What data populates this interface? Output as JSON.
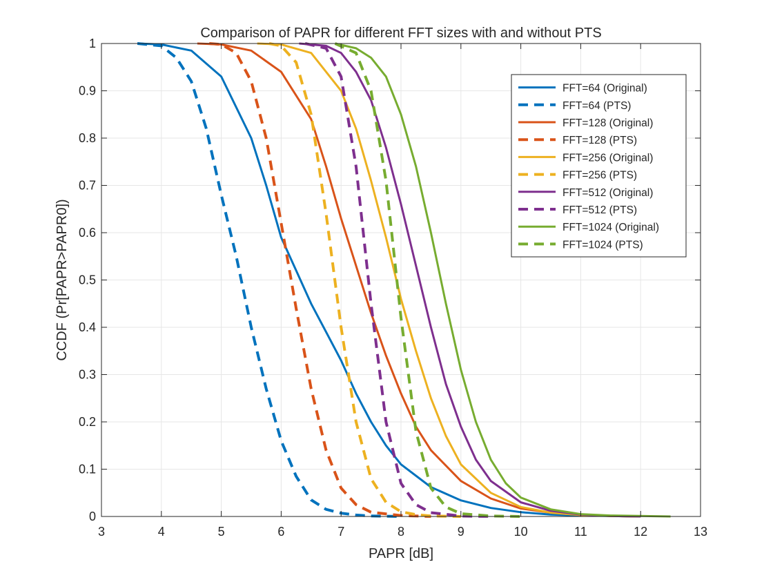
{
  "chart_data": {
    "type": "line",
    "title": "Comparison of PAPR for different FFT sizes with and without PTS",
    "xlabel": "PAPR [dB]",
    "ylabel": "CCDF (Pr[PAPR>PAPR0])",
    "xlim": [
      3,
      13
    ],
    "ylim": [
      0,
      1
    ],
    "xticks": [
      "3",
      "4",
      "5",
      "6",
      "7",
      "8",
      "9",
      "10",
      "11",
      "12",
      "13"
    ],
    "yticks": [
      "0",
      "0.1",
      "0.2",
      "0.3",
      "0.4",
      "0.5",
      "0.6",
      "0.7",
      "0.8",
      "0.9",
      "1"
    ],
    "grid": true,
    "legend_position": "top-right",
    "colors": {
      "fft64": "#0072BD",
      "fft128": "#D95319",
      "fft256": "#EDB120",
      "fft512": "#7E2F8E",
      "fft1024": "#77AC30"
    },
    "series": [
      {
        "name": "FFT=64 (Original)",
        "color": "#0072BD",
        "style": "solid",
        "x": [
          3.6,
          4.0,
          4.5,
          5.0,
          5.5,
          5.75,
          6.0,
          6.25,
          6.5,
          6.75,
          7.0,
          7.25,
          7.5,
          7.75,
          8.0,
          8.5,
          9.0,
          9.5,
          10.0,
          10.5,
          11.0,
          11.5,
          12.0
        ],
        "y": [
          1.0,
          0.998,
          0.985,
          0.93,
          0.8,
          0.7,
          0.59,
          0.52,
          0.45,
          0.39,
          0.33,
          0.26,
          0.2,
          0.15,
          0.11,
          0.062,
          0.034,
          0.018,
          0.009,
          0.004,
          0.002,
          0.001,
          0.0
        ]
      },
      {
        "name": "FFT=64 (PTS)",
        "color": "#0072BD",
        "style": "dashed",
        "x": [
          3.6,
          4.0,
          4.25,
          4.5,
          4.75,
          5.0,
          5.25,
          5.5,
          5.75,
          6.0,
          6.25,
          6.5,
          6.75,
          7.0,
          7.25,
          7.5,
          8.0
        ],
        "y": [
          1.0,
          0.995,
          0.97,
          0.92,
          0.82,
          0.68,
          0.55,
          0.4,
          0.27,
          0.16,
          0.085,
          0.035,
          0.015,
          0.007,
          0.003,
          0.001,
          0.0
        ]
      },
      {
        "name": "FFT=128 (Original)",
        "color": "#D95319",
        "style": "solid",
        "x": [
          4.6,
          5.0,
          5.5,
          6.0,
          6.5,
          6.75,
          7.0,
          7.25,
          7.5,
          7.75,
          8.0,
          8.25,
          8.5,
          9.0,
          9.5,
          10.0,
          10.5,
          11.0,
          11.5,
          12.0
        ],
        "y": [
          1.0,
          0.998,
          0.985,
          0.94,
          0.84,
          0.74,
          0.63,
          0.53,
          0.43,
          0.34,
          0.26,
          0.19,
          0.14,
          0.075,
          0.038,
          0.017,
          0.008,
          0.003,
          0.001,
          0.0
        ]
      },
      {
        "name": "FFT=128 (PTS)",
        "color": "#D95319",
        "style": "dashed",
        "x": [
          4.8,
          5.0,
          5.25,
          5.5,
          5.75,
          6.0,
          6.25,
          6.5,
          6.75,
          7.0,
          7.25,
          7.5,
          8.0,
          8.5
        ],
        "y": [
          1.0,
          0.998,
          0.98,
          0.92,
          0.8,
          0.62,
          0.44,
          0.27,
          0.14,
          0.06,
          0.025,
          0.009,
          0.002,
          0.0
        ]
      },
      {
        "name": "FFT=256 (Original)",
        "color": "#EDB120",
        "style": "solid",
        "x": [
          5.6,
          6.0,
          6.5,
          7.0,
          7.25,
          7.5,
          7.75,
          8.0,
          8.25,
          8.5,
          8.75,
          9.0,
          9.5,
          10.0,
          10.5,
          11.0,
          11.5,
          12.0
        ],
        "y": [
          1.0,
          0.998,
          0.98,
          0.9,
          0.82,
          0.71,
          0.59,
          0.46,
          0.35,
          0.25,
          0.17,
          0.11,
          0.05,
          0.02,
          0.008,
          0.003,
          0.001,
          0.0
        ]
      },
      {
        "name": "FFT=256 (PTS)",
        "color": "#EDB120",
        "style": "dashed",
        "x": [
          5.8,
          6.0,
          6.25,
          6.5,
          6.75,
          7.0,
          7.25,
          7.5,
          7.75,
          8.0,
          8.25,
          8.5,
          9.0
        ],
        "y": [
          1.0,
          0.995,
          0.96,
          0.85,
          0.64,
          0.4,
          0.2,
          0.08,
          0.03,
          0.01,
          0.004,
          0.001,
          0.0
        ]
      },
      {
        "name": "FFT=512 (Original)",
        "color": "#7E2F8E",
        "style": "solid",
        "x": [
          6.3,
          6.75,
          7.0,
          7.25,
          7.5,
          7.75,
          8.0,
          8.25,
          8.5,
          8.75,
          9.0,
          9.25,
          9.5,
          10.0,
          10.5,
          11.0,
          11.5,
          12.0
        ],
        "y": [
          1.0,
          0.995,
          0.98,
          0.94,
          0.88,
          0.78,
          0.66,
          0.53,
          0.4,
          0.28,
          0.19,
          0.12,
          0.075,
          0.03,
          0.012,
          0.004,
          0.001,
          0.0
        ]
      },
      {
        "name": "FFT=512 (PTS)",
        "color": "#7E2F8E",
        "style": "dashed",
        "x": [
          6.4,
          6.75,
          7.0,
          7.25,
          7.5,
          7.75,
          8.0,
          8.25,
          8.5,
          9.0,
          9.5
        ],
        "y": [
          1.0,
          0.99,
          0.93,
          0.74,
          0.45,
          0.2,
          0.07,
          0.025,
          0.008,
          0.001,
          0.0
        ]
      },
      {
        "name": "FFT=1024 (Original)",
        "color": "#77AC30",
        "style": "solid",
        "x": [
          6.9,
          7.25,
          7.5,
          7.75,
          8.0,
          8.25,
          8.5,
          8.75,
          9.0,
          9.25,
          9.5,
          9.75,
          10.0,
          10.5,
          11.0,
          11.5,
          12.0,
          12.5
        ],
        "y": [
          1.0,
          0.99,
          0.97,
          0.93,
          0.85,
          0.74,
          0.6,
          0.45,
          0.31,
          0.2,
          0.12,
          0.07,
          0.04,
          0.015,
          0.005,
          0.002,
          0.001,
          0.0
        ]
      },
      {
        "name": "FFT=1024 (PTS)",
        "color": "#77AC30",
        "style": "dashed",
        "x": [
          6.9,
          7.25,
          7.5,
          7.75,
          8.0,
          8.25,
          8.5,
          8.75,
          9.0,
          9.5,
          10.0
        ],
        "y": [
          1.0,
          0.98,
          0.9,
          0.71,
          0.42,
          0.18,
          0.06,
          0.02,
          0.006,
          0.001,
          0.0
        ]
      }
    ]
  }
}
